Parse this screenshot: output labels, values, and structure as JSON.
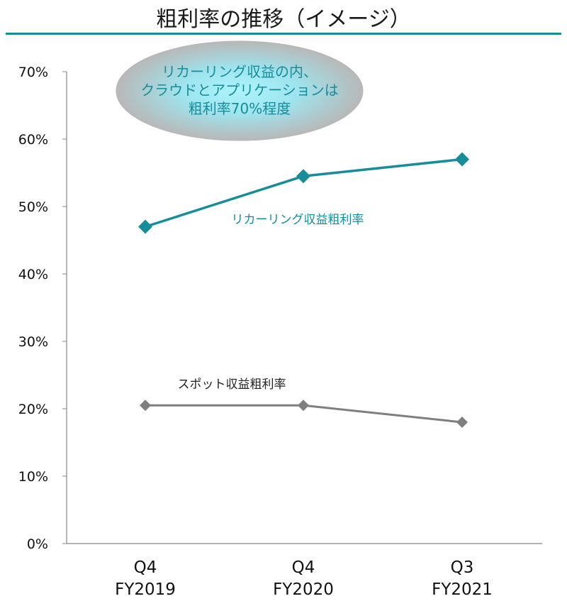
{
  "title": "粗利率の推移（イメージ）",
  "colors": {
    "accent": "#168d99",
    "rule": "#168d99",
    "spot": "#7f7f7f",
    "axis": "#888888",
    "callout_text": "#168d99"
  },
  "callout": {
    "lines": [
      "リカーリング収益の内、",
      "クラウドとアプリケーションは",
      "粗利率70%程度"
    ]
  },
  "chart_data": {
    "type": "line",
    "categories": [
      {
        "line1": "Q4",
        "line2": "FY2019"
      },
      {
        "line1": "Q4",
        "line2": "FY2020"
      },
      {
        "line1": "Q3",
        "line2": "FY2021"
      }
    ],
    "yticks": [
      "0%",
      "10%",
      "20%",
      "30%",
      "40%",
      "50%",
      "60%",
      "70%"
    ],
    "ylim": [
      0,
      70
    ],
    "grid": false,
    "series": [
      {
        "name": "リカーリング収益粗利率",
        "values": [
          47,
          54.5,
          57
        ],
        "color": "#168d99",
        "marker": "diamond"
      },
      {
        "name": "スポット収益粗利率",
        "values": [
          20.5,
          20.5,
          18
        ],
        "color": "#7f7f7f",
        "marker": "diamond"
      }
    ]
  }
}
